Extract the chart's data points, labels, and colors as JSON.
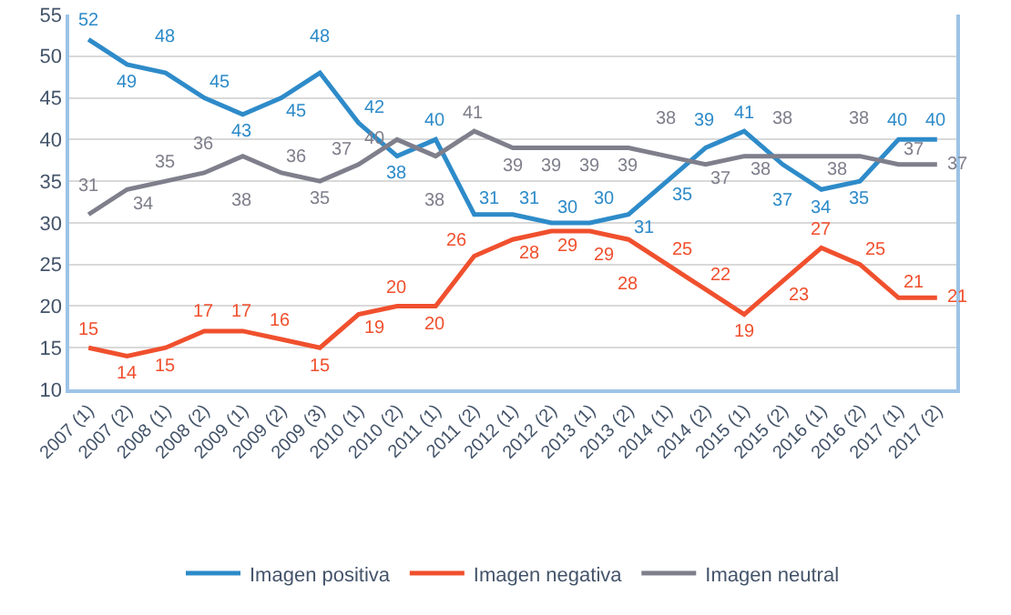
{
  "chart_data": {
    "type": "line",
    "categories": [
      "2007 (1)",
      "2007 (2)",
      "2008 (1)",
      "2008 (2)",
      "2009 (1)",
      "2009 (2)",
      "2009 (3)",
      "2010 (1)",
      "2010 (2)",
      "2011 (1)",
      "2011 (2)",
      "2012 (1)",
      "2012 (2)",
      "2013 (1)",
      "2013 (2)",
      "2014 (1)",
      "2014 (2)",
      "2015 (1)",
      "2015 (2)",
      "2016 (1)",
      "2016 (2)",
      "2017 (1)",
      "2017 (2)"
    ],
    "series": [
      {
        "name": "Imagen positiva",
        "color": "#2e8bc9",
        "values": [
          52,
          49,
          48,
          45,
          43,
          45,
          48,
          42,
          38,
          40,
          31,
          31,
          30,
          30,
          31,
          35,
          39,
          41,
          37,
          34,
          35,
          40,
          40
        ]
      },
      {
        "name": "Imagen negativa",
        "color": "#f0502e",
        "values": [
          15,
          14,
          15,
          17,
          17,
          16,
          15,
          19,
          20,
          20,
          26,
          28,
          29,
          29,
          28,
          25,
          22,
          19,
          23,
          27,
          25,
          21,
          21
        ]
      },
      {
        "name": "Imagen neutral",
        "color": "#7f7f8c",
        "values": [
          31,
          34,
          35,
          36,
          38,
          36,
          35,
          37,
          40,
          38,
          41,
          39,
          39,
          39,
          39,
          38,
          37,
          38,
          38,
          38,
          38,
          37,
          37
        ]
      }
    ],
    "ylim": [
      10,
      55
    ],
    "yticks": [
      10,
      15,
      20,
      25,
      30,
      35,
      40,
      45,
      50,
      55
    ],
    "grid": "y",
    "legend": "bottom",
    "data_labels": true,
    "marker": "none",
    "line_style": "solid"
  }
}
